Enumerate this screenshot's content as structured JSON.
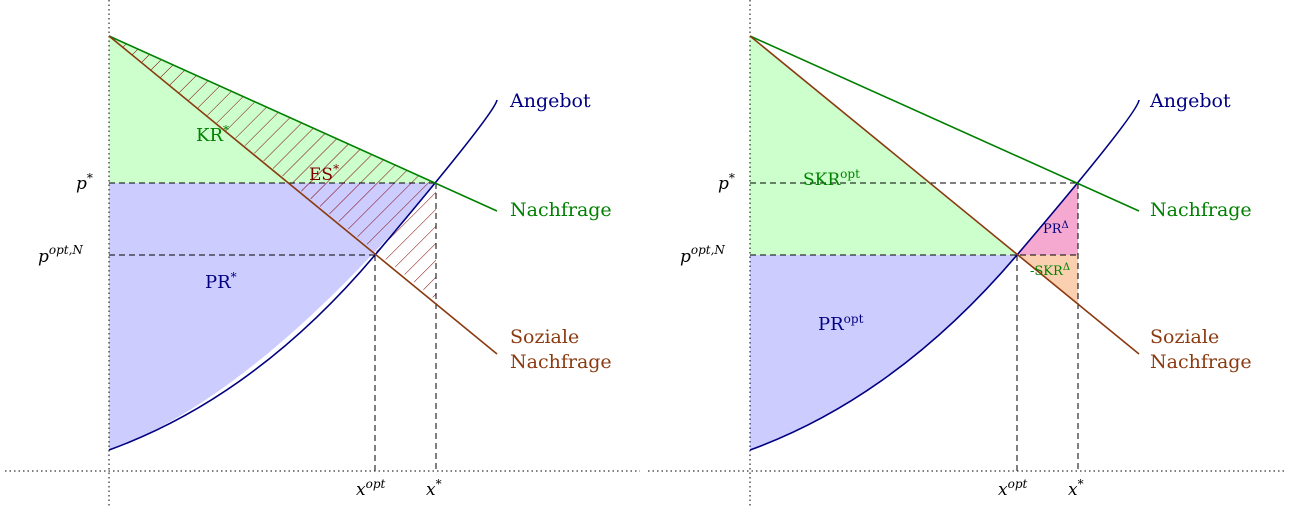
{
  "colors": {
    "supply": "#000080",
    "demand": "#008000",
    "social_demand": "#8B3A0F",
    "welfare_loss": "#800000",
    "consumer_fill": "#ccffcc",
    "producer_fill": "#ccccff",
    "pr_delta_fill": "#f5a9d0",
    "skr_delta_fill": "#fbd0b0"
  },
  "left": {
    "curves": {
      "supply": "Angebot",
      "demand": "Nachfrage",
      "social_demand_line1": "Soziale",
      "social_demand_line2": "Nachfrage"
    },
    "areas": {
      "kr": "KR",
      "kr_sup": "*",
      "es": "ES",
      "es_sup": "*",
      "pr": "PR",
      "pr_sup": "*"
    },
    "ticks": {
      "p_star": "p",
      "p_star_sup": "*",
      "p_opt": "p",
      "p_opt_sup": "opt,N",
      "x_opt": "x",
      "x_opt_sup": "opt",
      "x_star": "x",
      "x_star_sup": "*"
    }
  },
  "right": {
    "curves": {
      "supply": "Angebot",
      "demand": "Nachfrage",
      "social_demand_line1": "Soziale",
      "social_demand_line2": "Nachfrage"
    },
    "areas": {
      "skr": "SKR",
      "skr_sup": "opt",
      "pr": "PR",
      "pr_sup": "opt",
      "pr_delta": "PR",
      "pr_delta_sup": "Δ",
      "skr_delta": "-SKR",
      "skr_delta_sup": "Δ"
    },
    "ticks": {
      "p_star": "p",
      "p_star_sup": "*",
      "p_opt": "p",
      "p_opt_sup": "opt,N",
      "x_opt": "x",
      "x_opt_sup": "opt",
      "x_star": "x",
      "x_star_sup": "*"
    }
  }
}
